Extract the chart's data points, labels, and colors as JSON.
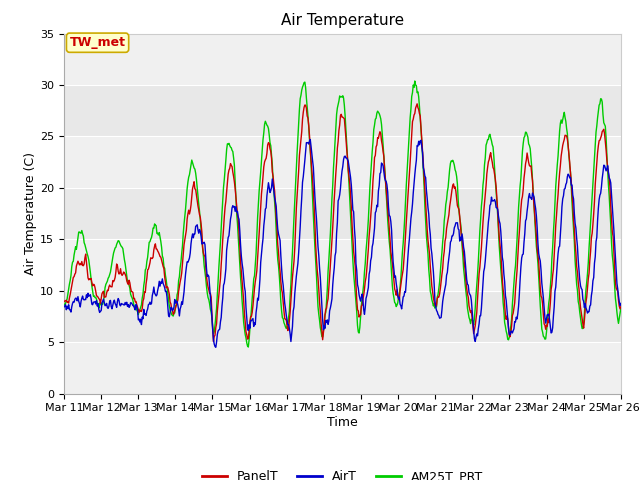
{
  "title": "Air Temperature",
  "xlabel": "Time",
  "ylabel": "Air Temperature (C)",
  "annotation": "TW_met",
  "ylim": [
    0,
    35
  ],
  "yticks": [
    0,
    5,
    10,
    15,
    20,
    25,
    30,
    35
  ],
  "x_tick_labels": [
    "Mar 11",
    "Mar 12",
    "Mar 13",
    "Mar 14",
    "Mar 15",
    "Mar 16",
    "Mar 17",
    "Mar 18",
    "Mar 19",
    "Mar 20",
    "Mar 21",
    "Mar 22",
    "Mar 23",
    "Mar 24",
    "Mar 25",
    "Mar 26"
  ],
  "panel_color": "#cc0000",
  "air_color": "#0000cc",
  "am25t_color": "#00cc00",
  "bg_color": "#e8e8e8",
  "annotation_bg": "#ffffcc",
  "annotation_border": "#ccaa00",
  "annotation_text_color": "#cc0000",
  "grid_color": "#ffffff",
  "title_fontsize": 11,
  "axis_label_fontsize": 9,
  "tick_fontsize": 8,
  "legend_fontsize": 9
}
